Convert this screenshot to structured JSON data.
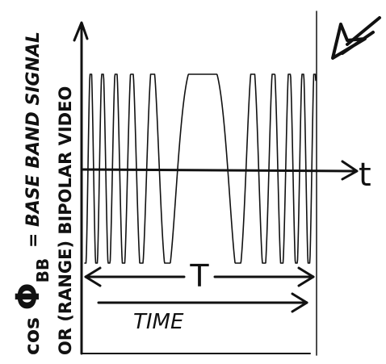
{
  "y_label": {
    "line1": {
      "cos": "cos",
      "phi": "Φ",
      "sub": "BB",
      "rest": "= BASE BAND SIGNAL"
    },
    "line2": "OR (RANGE) BIPOLAR VIDEO"
  },
  "x_axis_label": "t",
  "period_label": "T",
  "time_label": "TIME"
}
